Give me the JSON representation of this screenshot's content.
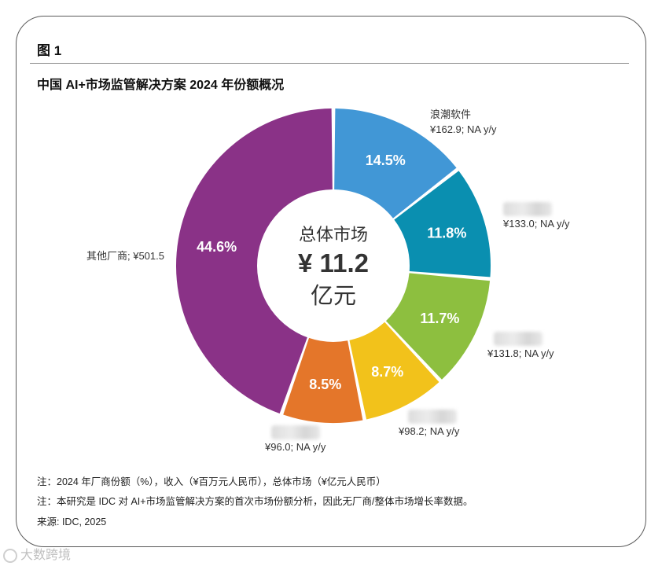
{
  "figure_label": "图 1",
  "chart_data": {
    "type": "pie",
    "variant": "donut",
    "title": "中国 AI+市场监管解决方案 2024 年份额概况",
    "center": {
      "line1": "总体市场",
      "line2": "¥ 11.2",
      "line3": "亿元"
    },
    "slices": [
      {
        "name": "浪潮软件",
        "value": 162.9,
        "percent": 14.5,
        "percent_label": "14.5%",
        "callout": "¥162.9; NA y/y",
        "color": "#4197d6",
        "name_hidden": false
      },
      {
        "name": "",
        "value": 133.0,
        "percent": 11.8,
        "percent_label": "11.8%",
        "callout": "¥133.0; NA y/y",
        "color": "#0a8fb0",
        "name_hidden": true
      },
      {
        "name": "",
        "value": 131.8,
        "percent": 11.7,
        "percent_label": "11.7%",
        "callout": "¥131.8; NA y/y",
        "color": "#8dbf3f",
        "name_hidden": true
      },
      {
        "name": "",
        "value": 98.2,
        "percent": 8.7,
        "percent_label": "8.7%",
        "callout": "¥98.2; NA y/y",
        "color": "#f2c21b",
        "name_hidden": true
      },
      {
        "name": "",
        "value": 96.0,
        "percent": 8.5,
        "percent_label": "8.5%",
        "callout": "¥96.0; NA y/y",
        "color": "#e4762a",
        "name_hidden": true
      },
      {
        "name": "其他厂商",
        "value": 501.5,
        "percent": 44.6,
        "percent_label": "44.6%",
        "callout": "其他厂商; ¥501.5",
        "color": "#8a3287",
        "name_hidden": false
      }
    ],
    "legend": "none"
  },
  "notes": [
    "注：2024 年厂商份额（%），收入（¥百万元人民币），总体市场（¥亿元人民币）",
    "注：本研究是 IDC 对 AI+市场监管解决方案的首次市场份额分析，因此无厂商/整体市场增长率数据。",
    "来源: IDC, 2025"
  ],
  "watermark": "大数跨境"
}
